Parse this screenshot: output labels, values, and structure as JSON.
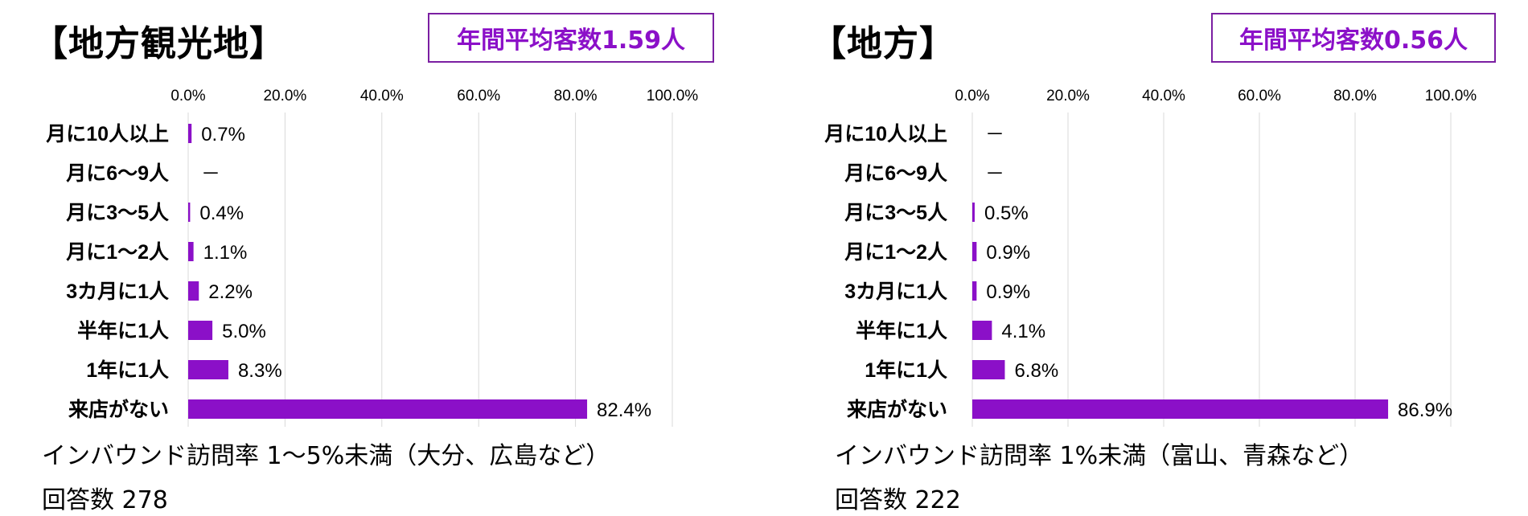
{
  "chart_data": [
    {
      "type": "bar",
      "orientation": "horizontal",
      "title": "【地方観光地】",
      "badge": "年間平均客数1.59人",
      "categories": [
        "月に10人以上",
        "月に6～9人",
        "月に3～5人",
        "月に1～2人",
        "3カ月に1人",
        "半年に1人",
        "1年に1人",
        "来店がない"
      ],
      "values": [
        0.7,
        null,
        0.4,
        1.1,
        2.2,
        5.0,
        8.3,
        82.4
      ],
      "data_labels": [
        "0.7%",
        "－",
        "0.4%",
        "1.1%",
        "2.2%",
        "5.0%",
        "8.3%",
        "82.4%"
      ],
      "xlim": [
        0,
        100
      ],
      "xticks": [
        "0.0%",
        "20.0%",
        "40.0%",
        "60.0%",
        "80.0%",
        "100.0%"
      ],
      "grid": true,
      "bar_color": "#8b10c8",
      "subtitle": "インバウンド訪問率 1～5%未満（大分、広島など）",
      "count_label": "回答数 278"
    },
    {
      "type": "bar",
      "orientation": "horizontal",
      "title": "【地方】",
      "badge": "年間平均客数0.56人",
      "categories": [
        "月に10人以上",
        "月に6～9人",
        "月に3～5人",
        "月に1～2人",
        "3カ月に1人",
        "半年に1人",
        "1年に1人",
        "来店がない"
      ],
      "values": [
        null,
        null,
        0.5,
        0.9,
        0.9,
        4.1,
        6.8,
        86.9
      ],
      "data_labels": [
        "－",
        "－",
        "0.5%",
        "0.9%",
        "0.9%",
        "4.1%",
        "6.8%",
        "86.9%"
      ],
      "xlim": [
        0,
        100
      ],
      "xticks": [
        "0.0%",
        "20.0%",
        "40.0%",
        "60.0%",
        "80.0%",
        "100.0%"
      ],
      "grid": true,
      "bar_color": "#8b10c8",
      "subtitle": "インバウンド訪問率 1%未満（富山、青森など）",
      "count_label": "回答数 222"
    }
  ]
}
